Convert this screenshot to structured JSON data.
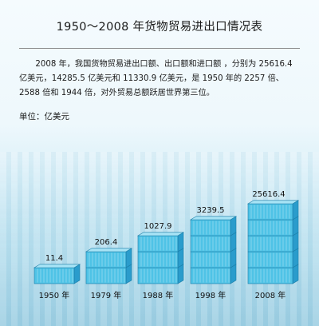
{
  "title": "1950～2008 年货物贸易进出口情况表",
  "description": "2008 年，我国货物贸易进出口额、出口额和进口额 ，分别为 25616.4 亿美元，14285.5 亿美元和 11330.9 亿美元，是 1950 年的 2257 倍、2588 倍和 1944 倍，对外贸易总额跃居世界第三位。",
  "unit_label": "单位：亿美元",
  "colors": {
    "box_front": "#4fc3e6",
    "box_side": "#2a9ccc",
    "box_top": "#a7e3f5",
    "box_line": "#1b7ea8"
  },
  "chart_data": {
    "type": "bar",
    "categories": [
      "1950 年",
      "1979 年",
      "1988 年",
      "1998 年",
      "2008 年"
    ],
    "values": [
      11.4,
      206.4,
      1027.9,
      3239.5,
      25616.4
    ],
    "value_labels": [
      "11.4",
      "206.4",
      "1027.9",
      "3239.5",
      "25616.4"
    ],
    "stack_counts": [
      1,
      2,
      3,
      4,
      5
    ],
    "title": "1950～2008 年货物贸易进出口情况表",
    "ylabel": "单位：亿美元"
  }
}
